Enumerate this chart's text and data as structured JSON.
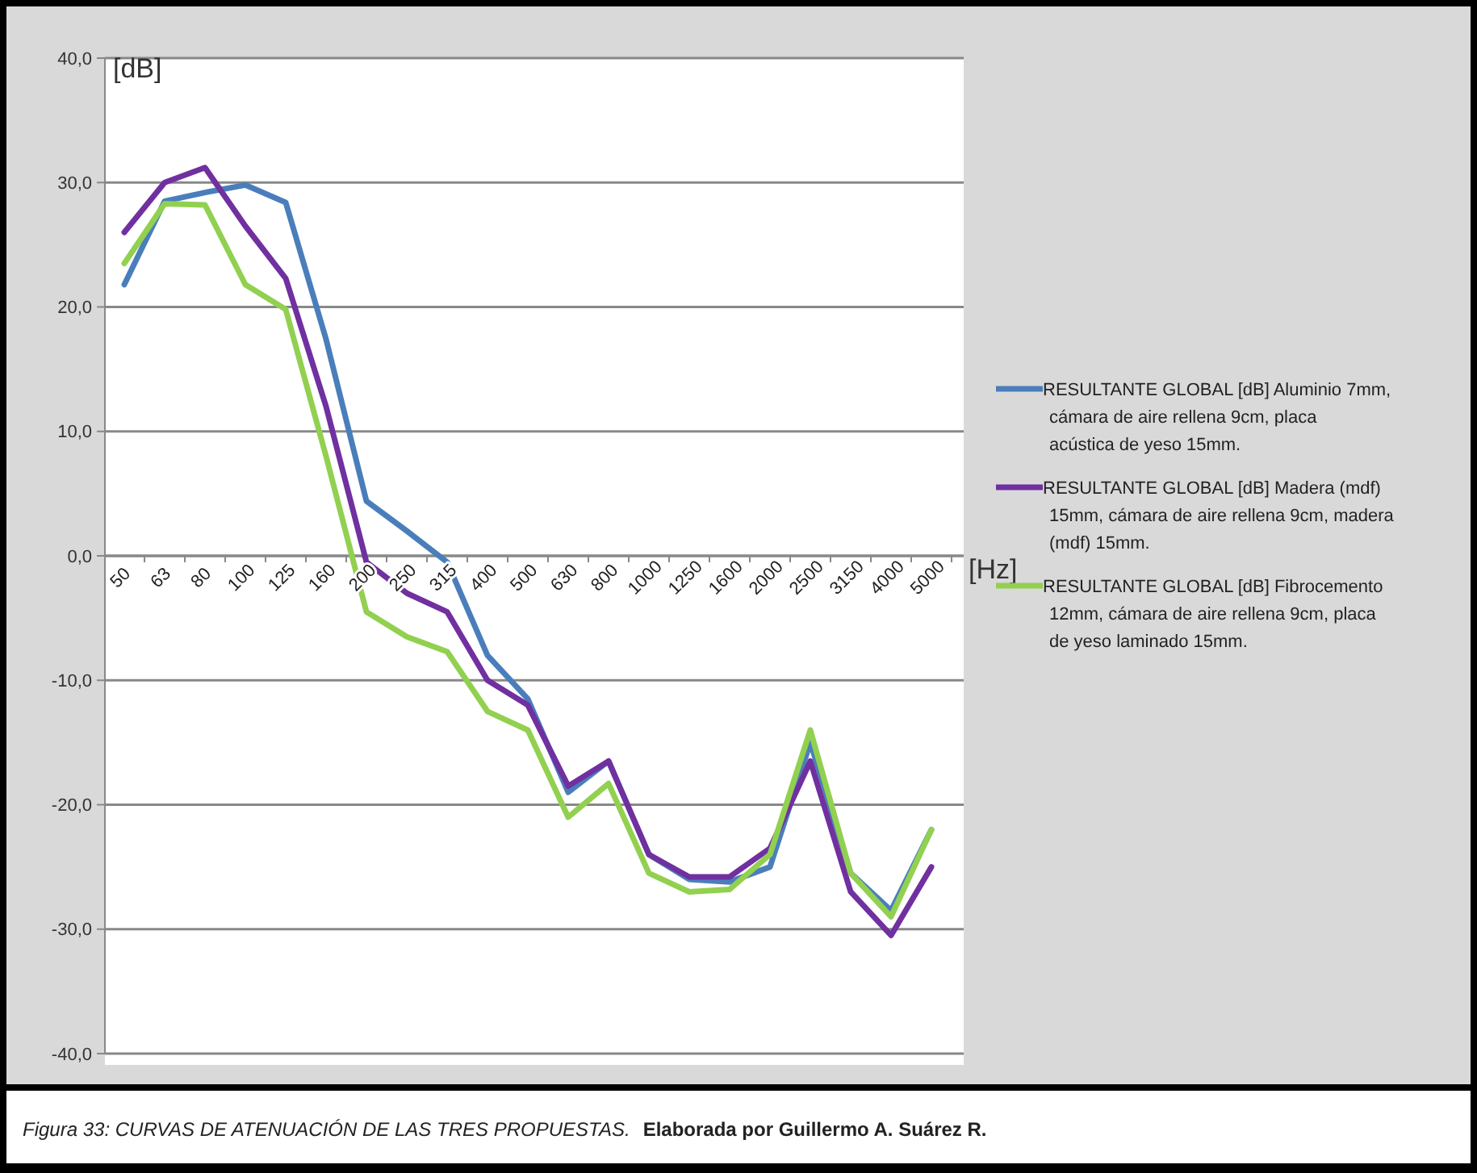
{
  "chart_data": {
    "type": "line",
    "xlabel": "[Hz]",
    "ylabel": "[dB]",
    "categories": [
      "50",
      "63",
      "80",
      "100",
      "125",
      "160",
      "200",
      "250",
      "315",
      "400",
      "500",
      "630",
      "800",
      "1000",
      "1250",
      "1600",
      "2000",
      "2500",
      "3150",
      "4000",
      "5000"
    ],
    "series": [
      {
        "name": "RESULTANTE GLOBAL [dB] Aluminio 7mm, cámara de aire rellena 9cm, placa acústica de yeso 15mm.",
        "color": "#4a7ebb",
        "values": [
          21.8,
          28.5,
          29.2,
          29.8,
          28.4,
          17.4,
          4.4,
          2,
          -0.5,
          -8,
          -11.5,
          -19,
          -16.5,
          -24,
          -26,
          -26.2,
          -25,
          -15,
          -25.5,
          -28.5,
          -22
        ]
      },
      {
        "name": "RESULTANTE GLOBAL [dB] Madera (mdf) 15mm, cámara de aire rellena 9cm, madera (mdf)  15mm.",
        "color": "#7030a0",
        "values": [
          26,
          30,
          31.2,
          26.5,
          22.3,
          12,
          -0.5,
          -3,
          -4.5,
          -10,
          -12,
          -18.5,
          -16.5,
          -24,
          -25.8,
          -25.8,
          -23.5,
          -16.5,
          -27,
          -30.5,
          -25
        ]
      },
      {
        "name": "RESULTANTE GLOBAL [dB] Fibrocemento 12mm, cámara de aire rellena 9cm, placa de yeso laminado 15mm.",
        "color": "#92d050",
        "values": [
          23.5,
          28.3,
          28.2,
          21.8,
          19.8,
          8,
          -4.5,
          -6.5,
          -7.7,
          -12.5,
          -14,
          -21,
          -18.3,
          -25.5,
          -27,
          -26.8,
          -24,
          -14,
          -25.5,
          -29,
          -22
        ]
      }
    ],
    "ylim": [
      -40,
      40
    ],
    "yticks": [
      {
        "value": -40,
        "label": "-40,0"
      },
      {
        "value": -30,
        "label": "-30,0"
      },
      {
        "value": -20,
        "label": "-20,0"
      },
      {
        "value": -10,
        "label": "-10,0"
      },
      {
        "value": 0,
        "label": "0,0"
      },
      {
        "value": 10,
        "label": "10,0"
      },
      {
        "value": 20,
        "label": "20,0"
      },
      {
        "value": 30,
        "label": "30,0"
      },
      {
        "value": 40,
        "label": "40,0"
      }
    ],
    "grid": "y",
    "legend": "right",
    "marker": "none",
    "line_style": "solid",
    "annotations": [
      "Figura 33:  CURVAS DE ATENUACIÓN DE LAS TRES PROPUESTAS.",
      "Elaborada por Guillermo A. Suárez R."
    ]
  }
}
